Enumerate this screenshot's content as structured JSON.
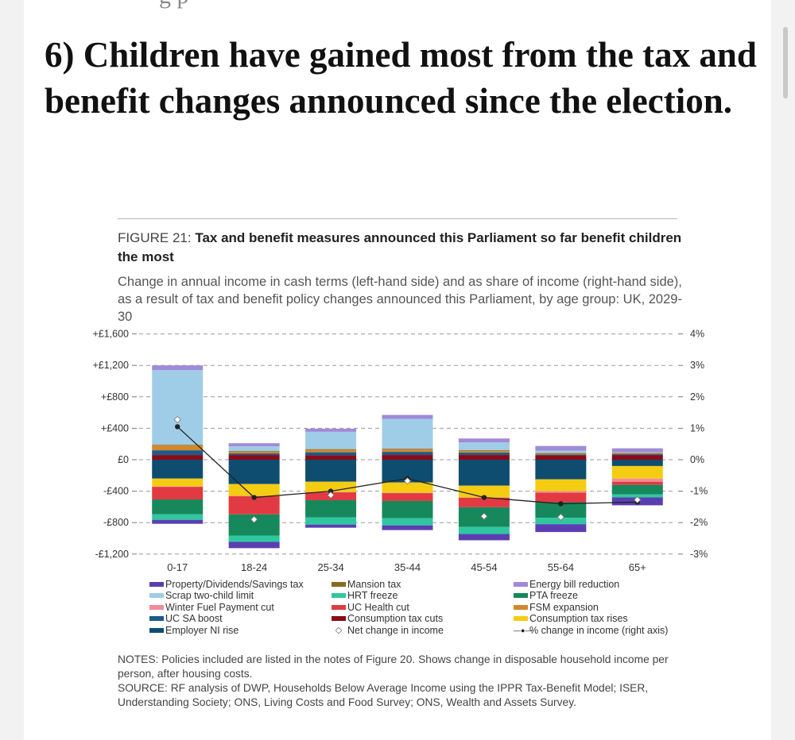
{
  "article": {
    "top_fragment": "g p",
    "headline": "6) Children have gained most from the tax and benefit changes announced since the election."
  },
  "figure": {
    "label": "FIGURE 21:",
    "title": "Tax and benefit measures announced this Parliament so far benefit children the most",
    "subtitle": "Change in annual income in cash terms (left-hand side) and as share of income (right-hand side), as a result of tax and benefit policy changes announced this Parliament, by age group: UK, 2029-30",
    "notes": "NOTES: Policies included are listed in the notes of Figure 20. Shows change in disposable household income per person, after housing costs.",
    "source": "SOURCE: RF analysis of DWP, Households Below Average Income using the IPPR Tax-Benefit Model; ISER, Understanding Society; ONS, Living Costs and Food Survey; ONS, Wealth and Assets Survey."
  },
  "chart_data": {
    "type": "bar",
    "stacked": true,
    "categories": [
      "0-17",
      "18-24",
      "25-34",
      "35-44",
      "45-54",
      "55-64",
      "65+"
    ],
    "ylim": [
      -1200,
      1600
    ],
    "y_ticks": [
      -1200,
      -800,
      -400,
      0,
      400,
      800,
      1200,
      1600
    ],
    "y_tick_labels": [
      "-£1,200",
      "-£800",
      "-£400",
      "£0",
      "+£400",
      "+£800",
      "+£1,200",
      "+£1,600"
    ],
    "y2lim": [
      -3,
      4
    ],
    "y2_ticks": [
      -3,
      -2,
      -1,
      0,
      1,
      2,
      3,
      4
    ],
    "y2_tick_labels": [
      "-3%",
      "-2%",
      "-1%",
      "0%",
      "1%",
      "2%",
      "3%",
      "4%"
    ],
    "grid": "dashed horizontal",
    "legend_position": "bottom",
    "series": [
      {
        "name": "Consumption tax cuts",
        "color": "#8b0a18",
        "values": [
          60,
          60,
          55,
          60,
          60,
          55,
          60
        ]
      },
      {
        "name": "UC SA boost",
        "color": "#1c5a8c",
        "values": [
          60,
          20,
          40,
          40,
          30,
          10,
          10
        ]
      },
      {
        "name": "FSM expansion",
        "color": "#d6862a",
        "values": [
          60,
          20,
          30,
          30,
          20,
          10,
          5
        ]
      },
      {
        "name": "Mansion tax",
        "color": "#8a6a20",
        "values": [
          10,
          10,
          10,
          10,
          10,
          10,
          10
        ]
      },
      {
        "name": "Scrap two-child limit",
        "color": "#9fcde7",
        "values": [
          950,
          60,
          220,
          380,
          100,
          30,
          10
        ]
      },
      {
        "name": "Energy bill reduction",
        "color": "#a08ad8",
        "values": [
          60,
          40,
          40,
          50,
          50,
          60,
          50
        ]
      },
      {
        "name": "Employer NI rise",
        "color": "#0f4d70",
        "values": [
          -240,
          -310,
          -280,
          -290,
          -330,
          -250,
          -80
        ]
      },
      {
        "name": "Consumption tax rises",
        "color": "#f4cc12",
        "values": [
          -100,
          -150,
          -130,
          -130,
          -150,
          -150,
          -160
        ]
      },
      {
        "name": "Winter Fuel Payment cut",
        "color": "#f08c9c",
        "values": [
          -5,
          -5,
          -5,
          -5,
          -5,
          -20,
          -40
        ]
      },
      {
        "name": "UC Health cut",
        "color": "#e23a42",
        "values": [
          -160,
          -230,
          -100,
          -100,
          -120,
          -120,
          -40
        ]
      },
      {
        "name": "PTA freeze",
        "color": "#17885c",
        "values": [
          -190,
          -270,
          -220,
          -220,
          -250,
          -200,
          -120
        ]
      },
      {
        "name": "HRT freeze",
        "color": "#2fc7a0",
        "values": [
          -70,
          -80,
          -90,
          -90,
          -90,
          -80,
          -40
        ]
      },
      {
        "name": "Property/Dividends/Savings tax",
        "color": "#5b3fb0",
        "values": [
          -50,
          -80,
          -40,
          -60,
          -80,
          -100,
          -100
        ]
      }
    ],
    "net_change": {
      "name": "Net change in income",
      "values": [
        510,
        -760,
        -450,
        -270,
        -720,
        -730,
        -510
      ]
    },
    "pct_change": {
      "name": "% change in income (right axis)",
      "values": [
        1.05,
        -1.2,
        -1.0,
        -0.6,
        -1.2,
        -1.4,
        -1.35
      ]
    },
    "legend": [
      {
        "name": "Property/Dividends/Savings tax",
        "color": "#5b3fb0",
        "kind": "bar"
      },
      {
        "name": "Scrap two-child limit",
        "color": "#9fcde7",
        "kind": "bar"
      },
      {
        "name": "Winter Fuel Payment cut",
        "color": "#f08c9c",
        "kind": "bar"
      },
      {
        "name": "UC SA boost",
        "color": "#1c5a8c",
        "kind": "bar"
      },
      {
        "name": "Employer NI rise",
        "color": "#0f4d70",
        "kind": "bar"
      },
      {
        "name": "Mansion tax",
        "color": "#8a6a20",
        "kind": "bar"
      },
      {
        "name": "HRT freeze",
        "color": "#2fc7a0",
        "kind": "bar"
      },
      {
        "name": "UC Health cut",
        "color": "#e23a42",
        "kind": "bar"
      },
      {
        "name": "Consumption tax cuts",
        "color": "#8b0a18",
        "kind": "bar"
      },
      {
        "name": "Net change in income",
        "color": "#777777",
        "kind": "diamond"
      },
      {
        "name": "Energy bill reduction",
        "color": "#a08ad8",
        "kind": "bar"
      },
      {
        "name": "PTA freeze",
        "color": "#17885c",
        "kind": "bar"
      },
      {
        "name": "FSM expansion",
        "color": "#d6862a",
        "kind": "bar"
      },
      {
        "name": "Consumption tax rises",
        "color": "#f4cc12",
        "kind": "bar"
      },
      {
        "name": "% change in income (right axis)",
        "color": "#222222",
        "kind": "line"
      }
    ]
  }
}
